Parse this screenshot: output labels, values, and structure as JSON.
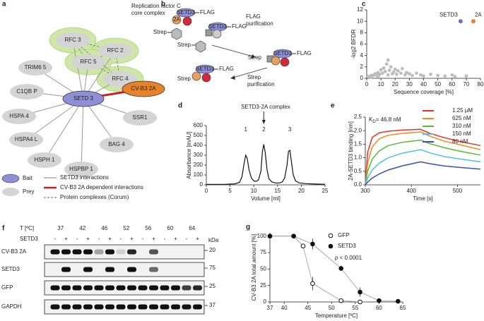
{
  "panel_labels": [
    "a",
    "b",
    "c",
    "d",
    "e",
    "f",
    "g"
  ],
  "network": {
    "complex_title": [
      "Replication factor C",
      "core complex"
    ],
    "bait": "SETD 3",
    "viral": "CV-B3 2A",
    "complex_nodes": [
      "RFC 3",
      "RFC 2",
      "RFC 5",
      "RFC 4"
    ],
    "prey_nodes": [
      "TRIM6 5",
      "C1QB P",
      "HSPA 4",
      "HSPA4 L",
      "HSPH 1",
      "HSPBP 1",
      "BAG 4",
      "SSR1"
    ],
    "legend": {
      "bait": "Bait",
      "prey": "Prey",
      "setd3": "SETD3 interactions",
      "viral": "CV-B3 2A dependent interactions",
      "complex": "Protein complexes (Corum)"
    }
  },
  "schematic": {
    "setd3": "SETD3",
    "viral": "2A",
    "flag": "FLAG",
    "strep": "Strep",
    "flag_step": [
      "FLAG",
      "purification"
    ],
    "strep_step": [
      "Strep",
      "purification"
    ]
  },
  "chart_data": [
    {
      "type": "scatter",
      "x_label": "Sequence coverage [%]",
      "y_label": "-log2 BFDR",
      "xlim": [
        0,
        80
      ],
      "xticks": [
        0,
        10,
        20,
        30,
        40,
        50,
        60,
        70,
        80
      ],
      "ylim": [
        0,
        12
      ],
      "yticks": [
        0,
        2,
        4,
        6,
        8,
        10,
        12
      ],
      "series": [
        {
          "name": "SETD3",
          "color": "#6f6fc9",
          "x": [
            66
          ],
          "values": [
            10
          ]
        },
        {
          "name": "2A",
          "color": "#e8822a",
          "x": [
            75
          ],
          "values": [
            10
          ]
        },
        {
          "color": "#bdbdbd",
          "x": [
            1,
            2,
            3,
            4,
            5,
            6,
            7,
            8,
            9,
            10,
            11,
            12,
            13,
            14,
            15,
            15,
            16,
            17,
            18,
            19,
            20,
            21,
            22,
            24,
            25,
            27,
            28,
            30,
            32,
            35,
            38,
            40,
            45,
            50,
            55,
            60,
            62,
            70,
            3,
            8
          ],
          "values": [
            0.3,
            0.3,
            0.5,
            0.4,
            0.6,
            0.8,
            0.5,
            1.0,
            0.7,
            1.5,
            0.9,
            1.8,
            1.2,
            2.5,
            3.2,
            0.6,
            1.4,
            2.0,
            0.8,
            1.1,
            1.6,
            0.7,
            1.3,
            0.9,
            1.7,
            0.6,
            1.0,
            0.8,
            0.5,
            0.9,
            0.6,
            0.4,
            0.7,
            0.5,
            0.4,
            0.6,
            0.3,
            0.4,
            0.2,
            0.3
          ]
        }
      ]
    },
    {
      "type": "line",
      "title": "SETD3-2A complex",
      "peak_labels": [
        "1",
        "2",
        "3"
      ],
      "x_label": "Volume [ml]",
      "y_label": "Absorbance [mAU]",
      "xlim": [
        0,
        25
      ],
      "xticks": [
        0,
        5,
        10,
        15,
        20,
        25
      ],
      "ylim": [
        0,
        600
      ],
      "yticks": [
        0,
        100,
        200,
        300,
        400,
        500,
        600
      ],
      "color": "#111111",
      "x": [
        0,
        2,
        4,
        6,
        7,
        7.5,
        8,
        8.3,
        8.6,
        9,
        9.5,
        10,
        10.5,
        11,
        11.5,
        11.8,
        12.1,
        12.4,
        12.8,
        13.2,
        13.8,
        14.5,
        15,
        15.5,
        16,
        16.5,
        17,
        17.3,
        17.6,
        17.9,
        18.3,
        18.8,
        19.5,
        21,
        23,
        25
      ],
      "values": [
        5,
        5,
        6,
        10,
        25,
        80,
        230,
        300,
        270,
        150,
        70,
        40,
        35,
        50,
        140,
        330,
        410,
        330,
        150,
        60,
        30,
        20,
        18,
        20,
        30,
        70,
        200,
        340,
        350,
        240,
        100,
        40,
        20,
        12,
        8,
        6
      ]
    },
    {
      "type": "line",
      "annotation": {
        "main": "K",
        "sub": "D",
        "rest": "= 46.8 nM"
      },
      "x_label": "Time [s]",
      "y_label": "2A-SETD3 binding [nm]",
      "xlim": [
        300,
        550
      ],
      "xticks": [
        300,
        400,
        500
      ],
      "ylim": [
        0,
        2.5
      ],
      "yticks": [
        {
          "value": 0,
          "label": "0.0"
        },
        0.5,
        {
          "value": 1,
          "label": "1.0"
        },
        1.5,
        {
          "value": 2,
          "label": "2.0"
        },
        2.5
      ],
      "x": [
        300,
        305,
        315,
        330,
        350,
        380,
        420,
        440,
        470,
        500,
        550
      ],
      "series": [
        {
          "name": "1.25 µM",
          "color": "#e8302a",
          "values": [
            0,
            1.2,
            1.75,
            1.92,
            1.98,
            2.02,
            2.05,
            1.9,
            1.75,
            1.62,
            1.45
          ]
        },
        {
          "name": "625 nM",
          "color": "#f28a1e",
          "values": [
            0,
            0.8,
            1.4,
            1.7,
            1.83,
            1.9,
            1.95,
            1.8,
            1.62,
            1.5,
            1.3
          ]
        },
        {
          "name": "310 nM",
          "color": "#5cb83a",
          "values": [
            0,
            0.5,
            0.95,
            1.25,
            1.45,
            1.57,
            1.65,
            1.52,
            1.38,
            1.26,
            1.1
          ]
        },
        {
          "name": "150 nM",
          "color": "#4fc3d9",
          "values": [
            0,
            0.25,
            0.55,
            0.8,
            1.0,
            1.17,
            1.3,
            1.18,
            1.05,
            0.97,
            0.85
          ]
        },
        {
          "name": "80 nM",
          "color": "#3a4fb0",
          "values": [
            0,
            0.1,
            0.25,
            0.4,
            0.55,
            0.7,
            0.85,
            0.78,
            0.7,
            0.65,
            0.58
          ]
        }
      ]
    },
    {
      "type": "scatter",
      "annotation": {
        "var": "p",
        "rest": " < 0.0001"
      },
      "x_label": "Temperature [ºC]",
      "y_label": "CV-B3 2A total amount [%]",
      "xlim": [
        37,
        65
      ],
      "xticks": [
        37,
        40,
        45,
        50,
        55,
        60,
        65
      ],
      "ylim": [
        0,
        105
      ],
      "yticks": [
        0,
        25,
        50,
        75,
        100
      ],
      "series": [
        {
          "name": "GFP",
          "color": "#111111",
          "marker": "open",
          "x": [
            37,
            42,
            44,
            46,
            52,
            56
          ],
          "values": [
            100,
            100,
            85,
            28,
            2,
            0
          ],
          "errors": [
            0,
            0,
            3,
            10,
            1,
            0
          ]
        },
        {
          "name": "SETD3",
          "color": "#111111",
          "marker": "filled",
          "x": [
            37,
            42,
            46,
            52,
            56,
            60,
            64
          ],
          "values": [
            100,
            100,
            88,
            51,
            15,
            2,
            1
          ],
          "errors": [
            0,
            0,
            8,
            4,
            7,
            1,
            0
          ]
        }
      ]
    }
  ],
  "blot": {
    "temp_label": "T [ºC]",
    "temps": [
      37,
      42,
      46,
      52,
      56,
      60,
      64
    ],
    "setd3_label": "SETD3",
    "minus": "-",
    "plus": "+",
    "kda": "kDa",
    "rows": [
      {
        "name": "CV-B3 2A",
        "kda": "20"
      },
      {
        "name": "SETD3",
        "kda": "75"
      },
      {
        "name": "GFP",
        "kda": "25"
      },
      {
        "name": "GAPDH",
        "kda": "37"
      }
    ]
  }
}
